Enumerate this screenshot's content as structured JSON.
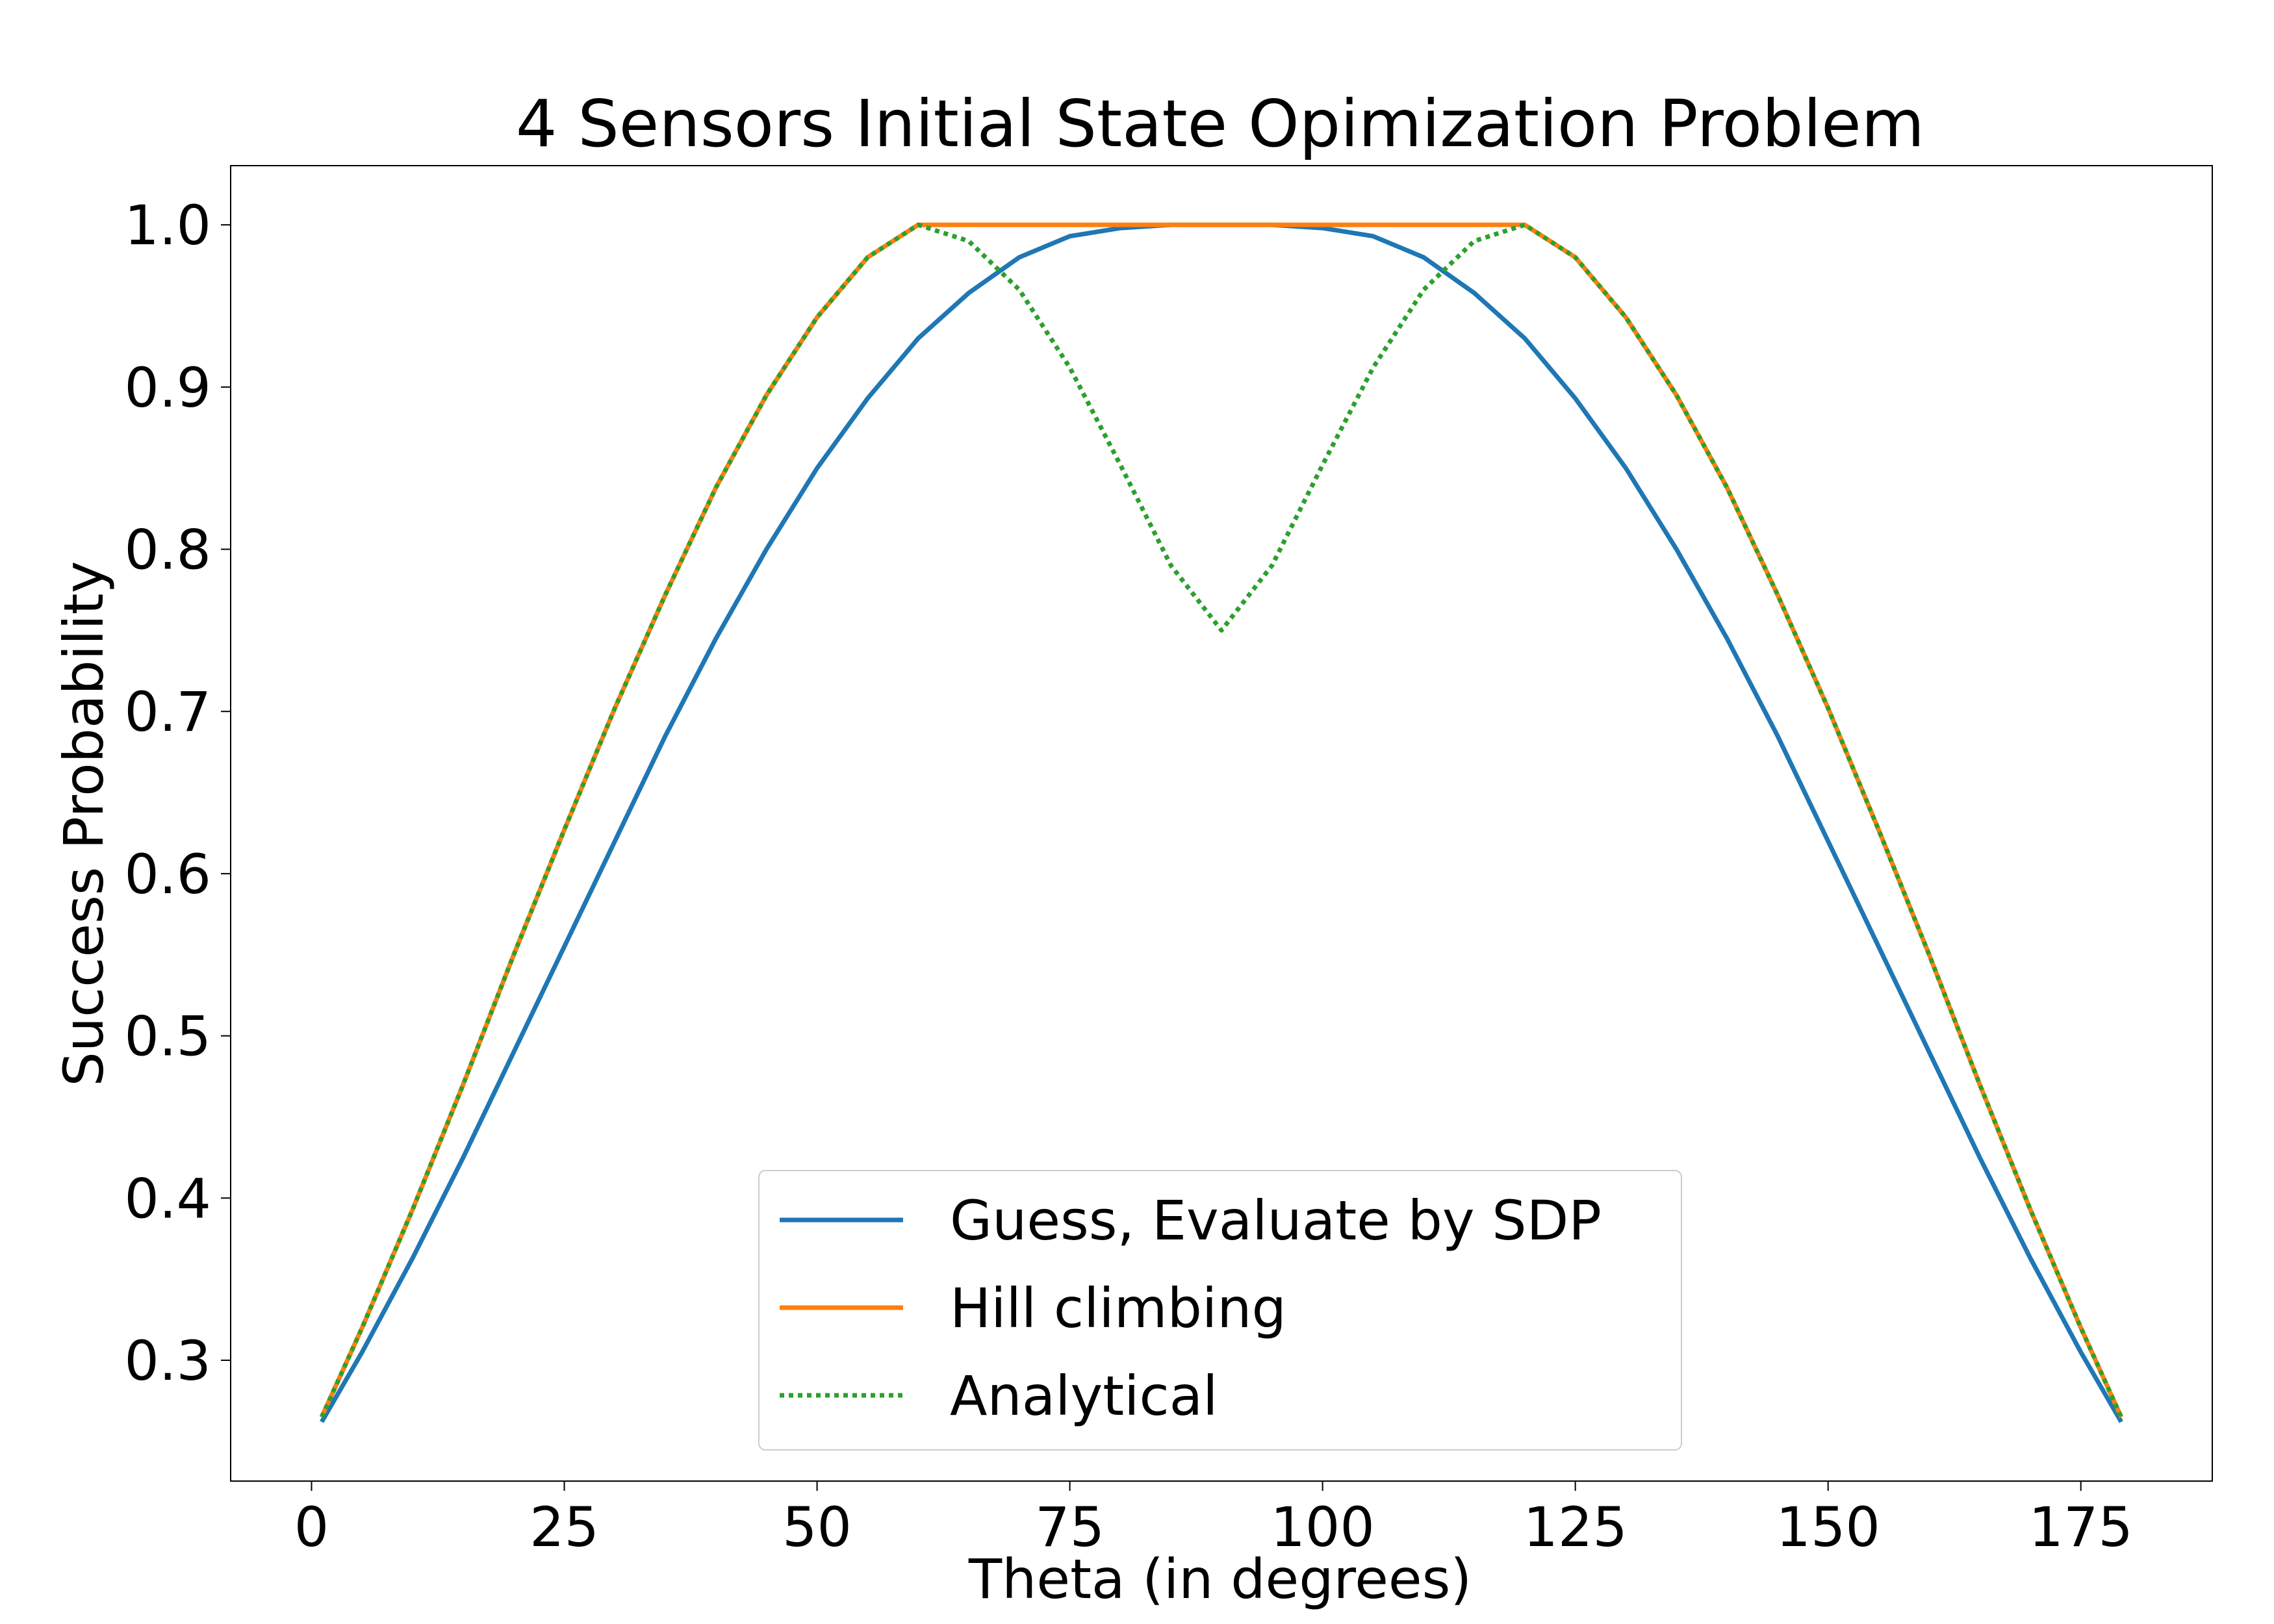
{
  "chart_data": {
    "type": "line",
    "title": "4 Sensors Initial State Opimization Problem",
    "xlabel": "Theta (in degrees)",
    "ylabel": "Success Probability",
    "xlim": [
      -8,
      188
    ],
    "ylim": [
      0.2255,
      1.0365
    ],
    "xticks": [
      0,
      25,
      50,
      75,
      100,
      125,
      150,
      175
    ],
    "xtick_labels": [
      "0",
      "25",
      "50",
      "75",
      "100",
      "125",
      "150",
      "175"
    ],
    "yticks": [
      0.3,
      0.4,
      0.5,
      0.6,
      0.7,
      0.8,
      0.9,
      1.0
    ],
    "ytick_labels": [
      "0.3",
      "0.4",
      "0.5",
      "0.6",
      "0.7",
      "0.8",
      "0.9",
      "1.0"
    ],
    "legend_position": "lower-center",
    "grid": false,
    "series": [
      {
        "name": "Guess, Evaluate by SDP",
        "color": "#1f77b4",
        "style": "solid",
        "x": [
          1,
          5,
          10,
          15,
          20,
          25,
          30,
          35,
          40,
          45,
          50,
          55,
          60,
          65,
          70,
          75,
          80,
          85,
          90,
          95,
          100,
          105,
          110,
          115,
          120,
          125,
          130,
          135,
          140,
          145,
          150,
          155,
          160,
          165,
          170,
          175,
          179
        ],
        "y": [
          0.262,
          0.305,
          0.363,
          0.425,
          0.49,
          0.555,
          0.62,
          0.685,
          0.745,
          0.8,
          0.85,
          0.893,
          0.93,
          0.958,
          0.98,
          0.993,
          0.998,
          1.0,
          1.0,
          1.0,
          0.998,
          0.993,
          0.98,
          0.958,
          0.93,
          0.893,
          0.85,
          0.8,
          0.745,
          0.685,
          0.62,
          0.555,
          0.49,
          0.425,
          0.363,
          0.305,
          0.262
        ]
      },
      {
        "name": "Hill climbing",
        "color": "#ff7f0e",
        "style": "solid",
        "x": [
          1,
          5,
          10,
          15,
          20,
          25,
          30,
          35,
          40,
          45,
          50,
          55,
          60,
          65,
          70,
          75,
          80,
          85,
          90,
          95,
          100,
          105,
          110,
          115,
          120,
          125,
          130,
          135,
          140,
          145,
          150,
          155,
          160,
          165,
          170,
          175,
          179
        ],
        "y": [
          0.265,
          0.32,
          0.393,
          0.47,
          0.55,
          0.627,
          0.702,
          0.772,
          0.838,
          0.895,
          0.943,
          0.98,
          1.0,
          1.0,
          1.0,
          1.0,
          1.0,
          1.0,
          1.0,
          1.0,
          1.0,
          1.0,
          1.0,
          1.0,
          1.0,
          0.98,
          0.943,
          0.895,
          0.838,
          0.772,
          0.702,
          0.627,
          0.55,
          0.47,
          0.393,
          0.32,
          0.265
        ]
      },
      {
        "name": "Analytical",
        "color": "#2ca02c",
        "style": "dotted",
        "x": [
          1,
          5,
          10,
          15,
          20,
          25,
          30,
          35,
          40,
          45,
          50,
          55,
          60,
          65,
          70,
          75,
          80,
          85,
          90,
          95,
          100,
          105,
          110,
          115,
          120,
          125,
          130,
          135,
          140,
          145,
          150,
          155,
          160,
          165,
          170,
          175,
          179
        ],
        "y": [
          0.265,
          0.32,
          0.393,
          0.47,
          0.55,
          0.627,
          0.702,
          0.772,
          0.838,
          0.895,
          0.943,
          0.98,
          1.0,
          0.99,
          0.96,
          0.912,
          0.852,
          0.79,
          0.75,
          0.79,
          0.852,
          0.912,
          0.96,
          0.99,
          1.0,
          0.98,
          0.943,
          0.895,
          0.838,
          0.772,
          0.702,
          0.627,
          0.55,
          0.47,
          0.393,
          0.32,
          0.265
        ]
      }
    ]
  }
}
